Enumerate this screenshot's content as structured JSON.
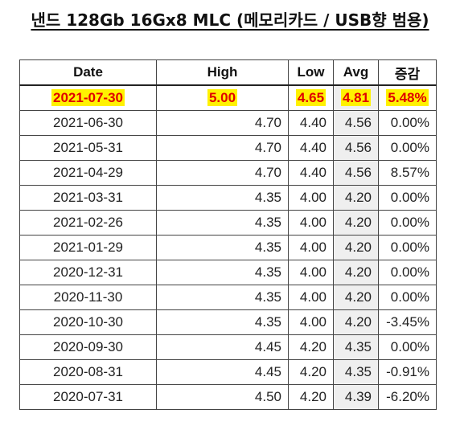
{
  "title": "낸드 128Gb 16Gx8 MLC (메모리카드 / USB향 범용)",
  "table": {
    "headers": [
      "Date",
      "High",
      "Low",
      "Avg",
      "증감"
    ],
    "highlight_row": {
      "date": "2021-07-30",
      "high": "5.00",
      "low": "4.65",
      "avg": "4.81",
      "change": "5.48%"
    },
    "rows": [
      {
        "date": "2021-06-30",
        "high": "4.70",
        "low": "4.40",
        "avg": "4.56",
        "change": "0.00%"
      },
      {
        "date": "2021-05-31",
        "high": "4.70",
        "low": "4.40",
        "avg": "4.56",
        "change": "0.00%"
      },
      {
        "date": "2021-04-29",
        "high": "4.70",
        "low": "4.40",
        "avg": "4.56",
        "change": "8.57%"
      },
      {
        "date": "2021-03-31",
        "high": "4.35",
        "low": "4.00",
        "avg": "4.20",
        "change": "0.00%"
      },
      {
        "date": "2021-02-26",
        "high": "4.35",
        "low": "4.00",
        "avg": "4.20",
        "change": "0.00%"
      },
      {
        "date": "2021-01-29",
        "high": "4.35",
        "low": "4.00",
        "avg": "4.20",
        "change": "0.00%"
      },
      {
        "date": "2020-12-31",
        "high": "4.35",
        "low": "4.00",
        "avg": "4.20",
        "change": "0.00%"
      },
      {
        "date": "2020-11-30",
        "high": "4.35",
        "low": "4.00",
        "avg": "4.20",
        "change": "0.00%"
      },
      {
        "date": "2020-10-30",
        "high": "4.35",
        "low": "4.00",
        "avg": "4.20",
        "change": "-3.45%"
      },
      {
        "date": "2020-09-30",
        "high": "4.45",
        "low": "4.20",
        "avg": "4.35",
        "change": "0.00%"
      },
      {
        "date": "2020-08-31",
        "high": "4.45",
        "low": "4.20",
        "avg": "4.35",
        "change": "-0.91%"
      },
      {
        "date": "2020-07-31",
        "high": "4.50",
        "low": "4.20",
        "avg": "4.39",
        "change": "-6.20%"
      }
    ]
  },
  "colors": {
    "highlight_text": "#e00000",
    "highlight_background": "#fff200",
    "avg_column_background": "#efefef"
  }
}
